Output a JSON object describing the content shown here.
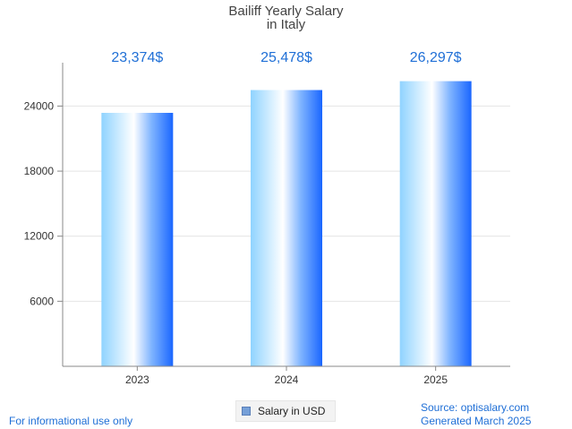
{
  "chart_data": {
    "type": "bar",
    "title": "Bailiff Yearly Salary",
    "subtitle": "in Italy",
    "categories": [
      "2023",
      "2024",
      "2025"
    ],
    "series": [
      {
        "name": "Salary in USD",
        "values": [
          23374,
          25478,
          26297
        ],
        "labels": [
          "23,374$",
          "25,478$",
          "26,297$"
        ]
      }
    ],
    "y_ticks": [
      6000,
      12000,
      18000,
      24000
    ],
    "ylim": [
      0,
      28000
    ],
    "xlabel": "",
    "ylabel": "",
    "grid": true,
    "legend": "bottom-center",
    "colors": {
      "bar_light": "#ffffff",
      "bar_mid": "#9ad8ff",
      "bar_dark": "#1a66ff",
      "label": "#1f6fd6"
    }
  },
  "footer": {
    "left": "For informational use only",
    "source": "Source: optisalary.com",
    "generated": "Generated March 2025"
  }
}
